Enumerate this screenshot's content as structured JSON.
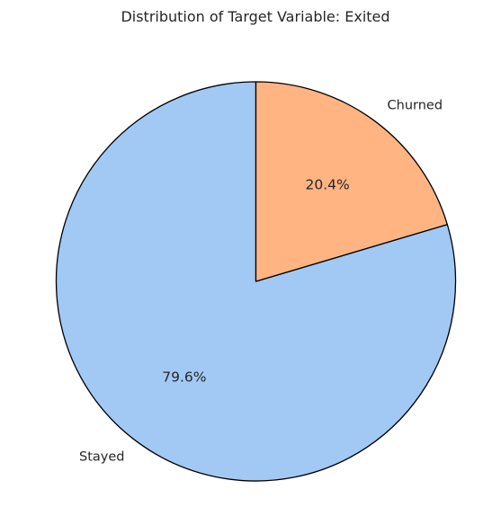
{
  "chart_data": {
    "type": "pie",
    "title": "Distribution of Target Variable: Exited",
    "categories": [
      "Stayed",
      "Churned"
    ],
    "values": [
      79.6,
      20.4
    ],
    "percent_labels": [
      "79.6%",
      "20.4%"
    ],
    "colors": [
      "#a1c9f4",
      "#ffb482"
    ],
    "edge_color": "#000000",
    "start_angle_deg": 90,
    "direction": "counterclockwise",
    "legend": "none"
  }
}
